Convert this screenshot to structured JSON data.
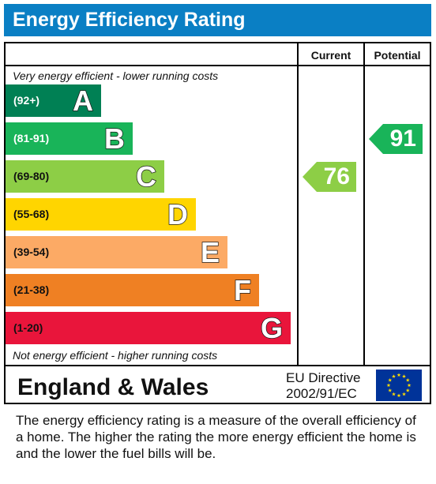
{
  "title": "Energy Efficiency Rating",
  "columns": {
    "current": "Current",
    "potential": "Potential"
  },
  "captions": {
    "top": "Very energy efficient - lower running costs",
    "bottom": "Not energy efficient - higher running costs"
  },
  "chart_data": {
    "type": "bar",
    "bands": [
      {
        "range": "(92+)",
        "letter": "A",
        "color": "#008054",
        "range_color": "#ffffff"
      },
      {
        "range": "(81-91)",
        "letter": "B",
        "color": "#19b459",
        "range_color": "#ffffff"
      },
      {
        "range": "(69-80)",
        "letter": "C",
        "color": "#8dce46",
        "range_color": "#111111"
      },
      {
        "range": "(55-68)",
        "letter": "D",
        "color": "#ffd500",
        "range_color": "#111111"
      },
      {
        "range": "(39-54)",
        "letter": "E",
        "color": "#fcaa65",
        "range_color": "#111111"
      },
      {
        "range": "(21-38)",
        "letter": "F",
        "color": "#ef8023",
        "range_color": "#111111"
      },
      {
        "range": "(1-20)",
        "letter": "G",
        "color": "#e9153b",
        "range_color": "#111111"
      }
    ],
    "current": {
      "value": 76,
      "band": "C",
      "color": "#8dce46"
    },
    "potential": {
      "value": 91,
      "band": "B",
      "color": "#19b459"
    }
  },
  "footer": {
    "country": "England & Wales",
    "directive_line1": "EU Directive",
    "directive_line2": "2002/91/EC",
    "flag_icon": "eu-flag-icon"
  },
  "description": "The energy efficiency rating is a measure of the overall efficiency of a home.  The higher the rating the more energy efficient the home is and the lower the fuel bills will be."
}
